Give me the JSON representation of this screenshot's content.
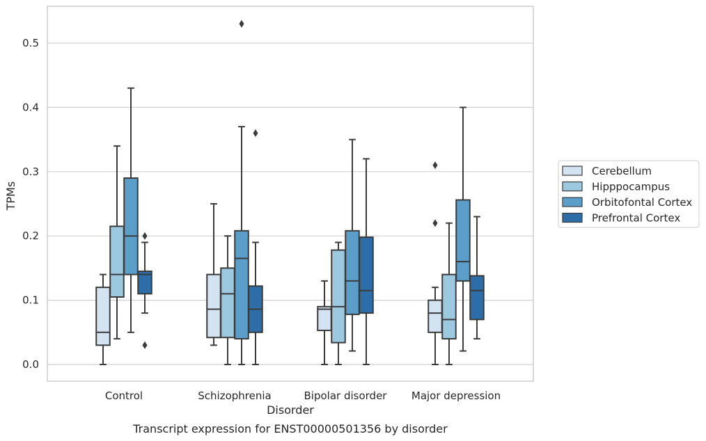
{
  "caption": "Transcript expression for ENST00000501356 by disorder",
  "chart_data": {
    "type": "box",
    "xlabel": "Disorder",
    "ylabel": "TPMs",
    "ylim": [
      -0.025,
      0.56
    ],
    "yticks": [
      0.0,
      0.1,
      0.2,
      0.3,
      0.4,
      0.5
    ],
    "ytick_labels": [
      "0.0",
      "0.1",
      "0.2",
      "0.3",
      "0.4",
      "0.5"
    ],
    "grid": "horizontal",
    "legend_position": "right",
    "categories": [
      "Control",
      "Schizophrenia",
      "Bipolar disorder",
      "Major depression"
    ],
    "series": [
      {
        "name": "Cerebellum",
        "color": "#d4e3f2",
        "boxes": [
          {
            "whisker_low": 0.0,
            "q1": 0.03,
            "median": 0.05,
            "q3": 0.12,
            "whisker_high": 0.14,
            "outliers": []
          },
          {
            "whisker_low": 0.03,
            "q1": 0.042,
            "median": 0.086,
            "q3": 0.14,
            "whisker_high": 0.25,
            "outliers": []
          },
          {
            "whisker_low": 0.0,
            "q1": 0.053,
            "median": 0.086,
            "q3": 0.09,
            "whisker_high": 0.13,
            "outliers": []
          },
          {
            "whisker_low": 0.0,
            "q1": 0.05,
            "median": 0.08,
            "q3": 0.1,
            "whisker_high": 0.12,
            "outliers": [
              0.22,
              0.31
            ]
          }
        ]
      },
      {
        "name": "Hipppocampus",
        "color": "#9cc9e0",
        "boxes": [
          {
            "whisker_low": 0.04,
            "q1": 0.105,
            "median": 0.14,
            "q3": 0.215,
            "whisker_high": 0.34,
            "outliers": []
          },
          {
            "whisker_low": 0.0,
            "q1": 0.042,
            "median": 0.11,
            "q3": 0.15,
            "whisker_high": 0.2,
            "outliers": []
          },
          {
            "whisker_low": 0.0,
            "q1": 0.034,
            "median": 0.09,
            "q3": 0.178,
            "whisker_high": 0.19,
            "outliers": []
          },
          {
            "whisker_low": 0.0,
            "q1": 0.04,
            "median": 0.07,
            "q3": 0.14,
            "whisker_high": 0.22,
            "outliers": []
          }
        ]
      },
      {
        "name": "Orbitofontal Cortex",
        "color": "#5a9ec9",
        "boxes": [
          {
            "whisker_low": 0.05,
            "q1": 0.14,
            "median": 0.2,
            "q3": 0.29,
            "whisker_high": 0.43,
            "outliers": []
          },
          {
            "whisker_low": 0.0,
            "q1": 0.04,
            "median": 0.165,
            "q3": 0.208,
            "whisker_high": 0.37,
            "outliers": [
              0.53
            ]
          },
          {
            "whisker_low": 0.021,
            "q1": 0.078,
            "median": 0.13,
            "q3": 0.208,
            "whisker_high": 0.35,
            "outliers": []
          },
          {
            "whisker_low": 0.021,
            "q1": 0.13,
            "median": 0.16,
            "q3": 0.256,
            "whisker_high": 0.4,
            "outliers": []
          }
        ]
      },
      {
        "name": "Prefrontal Cortex",
        "color": "#2d6ea8",
        "boxes": [
          {
            "whisker_low": 0.08,
            "q1": 0.11,
            "median": 0.14,
            "q3": 0.145,
            "whisker_high": 0.19,
            "outliers": [
              0.03,
              0.2
            ]
          },
          {
            "whisker_low": 0.0,
            "q1": 0.05,
            "median": 0.086,
            "q3": 0.122,
            "whisker_high": 0.19,
            "outliers": [
              0.36
            ]
          },
          {
            "whisker_low": 0.0,
            "q1": 0.08,
            "median": 0.115,
            "q3": 0.198,
            "whisker_high": 0.32,
            "outliers": []
          },
          {
            "whisker_low": 0.04,
            "q1": 0.07,
            "median": 0.115,
            "q3": 0.138,
            "whisker_high": 0.23,
            "outliers": []
          }
        ]
      }
    ]
  }
}
